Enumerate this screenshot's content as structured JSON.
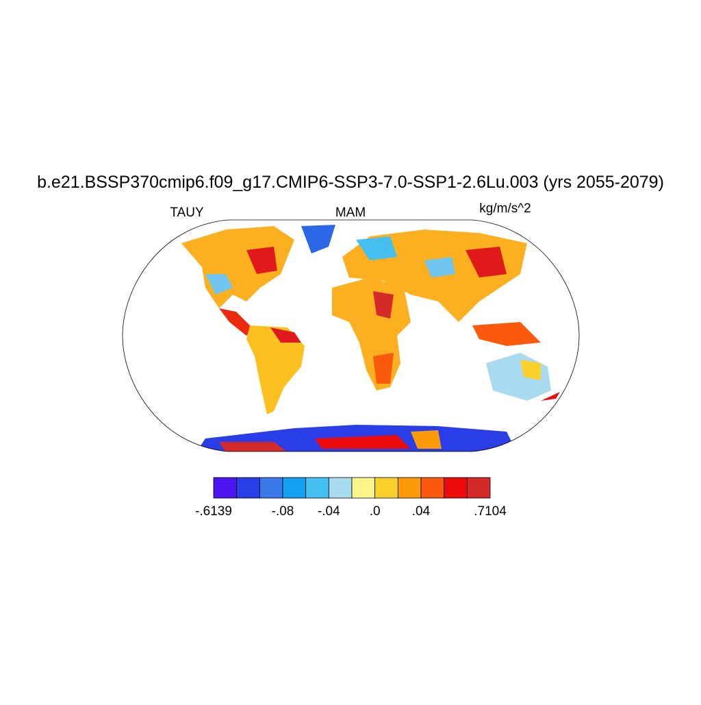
{
  "title": "b.e21.BSSP370cmip6.f09_g17.CMIP6-SSP3-7.0-SSP1-2.6Lu.003 (yrs 2055-2079)",
  "left_label": "TAUY",
  "center_label": "MAM",
  "right_label": "kg/m/s^2",
  "colorbar": {
    "colors": [
      "#4b14f0",
      "#2a3ee8",
      "#3a78e8",
      "#12a0f5",
      "#45bff0",
      "#a9dbf0",
      "#fdf58a",
      "#fcd02a",
      "#fc9a0a",
      "#fb5a0c",
      "#ec0c0c",
      "#d42a2a"
    ],
    "labels": [
      "-.6139",
      "-.08",
      "-.04",
      ".0",
      ".04",
      ".7104"
    ]
  }
}
